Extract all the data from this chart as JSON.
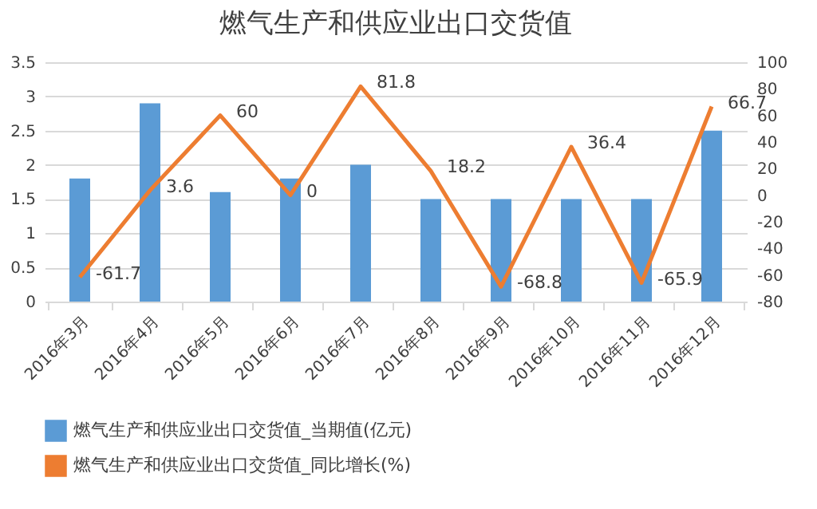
{
  "chart_data": {
    "type": "bar",
    "title": "燃气生产和供应业出口交货值",
    "categories": [
      "2016年3月",
      "2016年4月",
      "2016年5月",
      "2016年6月",
      "2016年7月",
      "2016年8月",
      "2016年9月",
      "2016年10月",
      "2016年11月",
      "2016年12月"
    ],
    "series": [
      {
        "name": "燃气生产和供应业出口交货值_当期值(亿元)",
        "color": "#5b9bd5",
        "values": [
          1.8,
          2.9,
          1.6,
          1.8,
          2.0,
          1.5,
          1.5,
          1.5,
          1.5,
          2.5
        ]
      },
      {
        "name": "燃气生产和供应业出口交货值_同比增长(%)",
        "type": "line",
        "axis": "y2",
        "color": "#ed7d31",
        "values": [
          -61.7,
          3.6,
          60,
          0,
          81.8,
          18.2,
          -68.8,
          36.4,
          -65.9,
          66.7
        ],
        "value_labels": [
          "-61.7",
          "3.6",
          "60",
          "0",
          "81.8",
          "18.2",
          "-68.8",
          "36.4",
          "-65.9",
          "66.7"
        ]
      }
    ],
    "ylim": [
      0,
      3.5
    ],
    "yticks": [
      0,
      0.5,
      1,
      1.5,
      2,
      2.5,
      3,
      3.5
    ],
    "y2lim": [
      -80,
      100
    ],
    "y2ticks": [
      -80,
      -60,
      -40,
      -20,
      0,
      20,
      40,
      60,
      80,
      100
    ],
    "grid": "y",
    "legend": "bottom"
  }
}
